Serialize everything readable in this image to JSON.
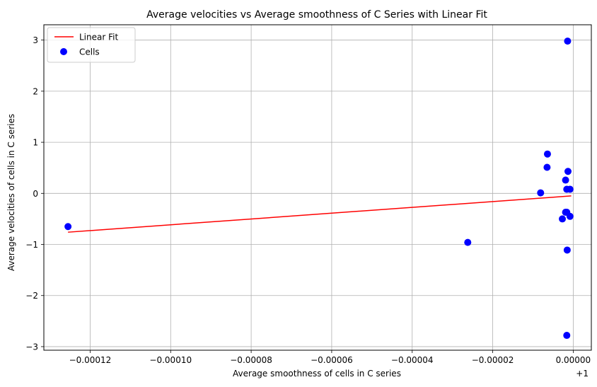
{
  "chart_data": {
    "type": "scatter",
    "title": "Average velocities vs Average smoothness of C Series with Linear Fit",
    "xlabel": "Average smoothness of cells in C series",
    "ylabel": "Average velocities of cells in C series",
    "x_offset_label": "+1",
    "xlim": [
      -0.0001315,
      4.5e-06
    ],
    "ylim": [
      -3.07,
      3.3
    ],
    "x_ticks": [
      -0.00012,
      -0.0001,
      -8e-05,
      -6e-05,
      -4e-05,
      -2e-05,
      0.0
    ],
    "x_tick_labels": [
      "−0.00012",
      "−0.00010",
      "−0.00008",
      "−0.00006",
      "−0.00004",
      "−0.00002",
      "0.00000"
    ],
    "y_ticks": [
      -3,
      -2,
      -1,
      0,
      1,
      2,
      3
    ],
    "y_tick_labels": [
      "−3",
      "−2",
      "−1",
      "0",
      "1",
      "2",
      "3"
    ],
    "grid": true,
    "legend_position": "top-left",
    "series": [
      {
        "name": "Linear Fit",
        "kind": "line",
        "color": "#ff0000",
        "x": [
          -0.0001255,
          -5e-07
        ],
        "y": [
          -0.76,
          -0.05
        ]
      },
      {
        "name": "Cells",
        "kind": "scatter",
        "color": "#0000ff",
        "x": [
          -0.0001255,
          -2.62e-05,
          -8.1e-06,
          -6.4e-06,
          -6.5e-06,
          -1.9e-06,
          -1.6e-06,
          -1.3e-06,
          -8e-07,
          -1.6e-06,
          -2.7e-06,
          -1.9e-06,
          -8e-07,
          -1.5e-06,
          -1.6e-06
        ],
        "y": [
          -0.65,
          -0.96,
          0.01,
          0.77,
          0.51,
          0.26,
          0.08,
          0.43,
          0.08,
          -0.37,
          -0.5,
          -0.37,
          -0.45,
          -1.11,
          -2.78
        ]
      },
      {
        "name": "",
        "kind": "scatter-extra",
        "color": "#0000ff",
        "x": [
          -1.4e-06
        ],
        "y": [
          2.98
        ]
      }
    ]
  }
}
